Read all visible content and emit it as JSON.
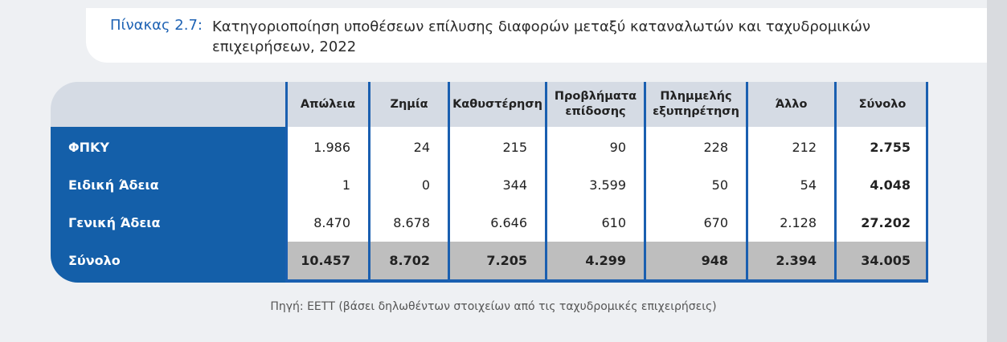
{
  "title": {
    "label": "Πίνακας 2.7:",
    "line1": "Κατηγοριοποίηση υποθέσεων επίλυσης διαφορών μεταξύ καταναλωτών και ταχυδρομικών",
    "line2": "επιχειρήσεων, 2022"
  },
  "source": "Πηγή: ΕΕΤΤ (βάσει δηλωθέντων στοιχείων από τις ταχυδρομικές επιχειρήσεις)",
  "colors": {
    "accent_blue": "#145fa9",
    "header_grey": "#d5dbe4",
    "total_grey": "#bebebe"
  },
  "chart_data": {
    "type": "table",
    "columns": [
      "Απώλεια",
      "Ζημία",
      "Καθυστέρηση",
      "Προβλήματα επίδοσης",
      "Πλημμελής εξυπηρέτηση",
      "Άλλο",
      "Σύνολο"
    ],
    "rows": [
      {
        "label": "ΦΠΚΥ",
        "values": [
          "1.986",
          "24",
          "215",
          "90",
          "228",
          "212",
          "2.755"
        ]
      },
      {
        "label": "Ειδική Άδεια",
        "values": [
          "1",
          "0",
          "344",
          "3.599",
          "50",
          "54",
          "4.048"
        ]
      },
      {
        "label": "Γενική Άδεια",
        "values": [
          "8.470",
          "8.678",
          "6.646",
          "610",
          "670",
          "2.128",
          "27.202"
        ]
      },
      {
        "label": "Σύνολο",
        "values": [
          "10.457",
          "8.702",
          "7.205",
          "4.299",
          "948",
          "2.394",
          "34.005"
        ]
      }
    ]
  }
}
